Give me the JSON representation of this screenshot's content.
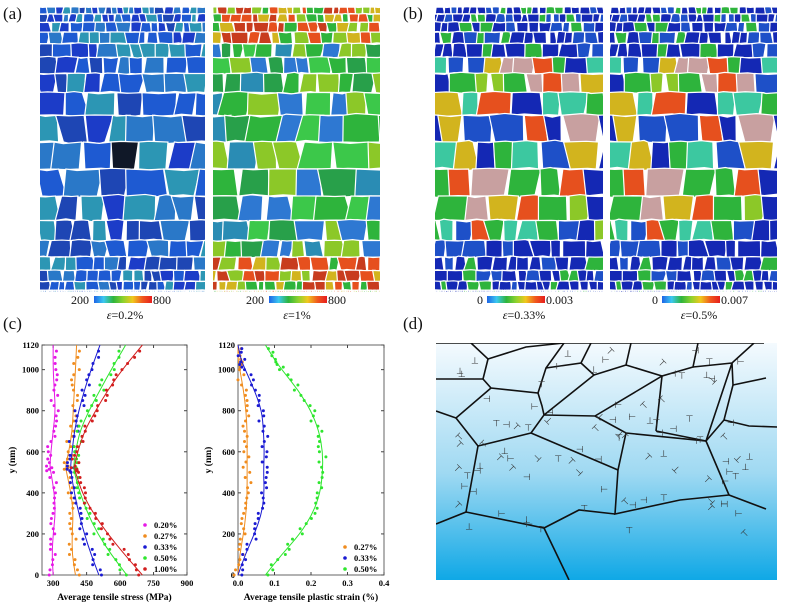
{
  "figure": {
    "panels": {
      "a": {
        "label": "(a)",
        "maps": [
          {
            "caption_symbol": "ε",
            "caption_value": "=0.2%",
            "colorbar_min": "200",
            "colorbar_max": "800",
            "palette": "blue"
          },
          {
            "caption_symbol": "ε",
            "caption_value": "=1%",
            "colorbar_min": "200",
            "colorbar_max": "800",
            "palette": "green"
          }
        ]
      },
      "b": {
        "label": "(b)",
        "maps": [
          {
            "caption_symbol": "ε",
            "caption_value": "=0.33%",
            "colorbar_min": "0",
            "colorbar_max": "0.003",
            "palette": "band"
          },
          {
            "caption_symbol": "ε",
            "caption_value": "=0.5%",
            "colorbar_min": "0",
            "colorbar_max": "0.007",
            "palette": "band"
          }
        ]
      },
      "c": {
        "label": "(c)"
      },
      "d": {
        "label": "(d)",
        "description": "Schematic of grains with dislocations (⊥ symbols) near a surface"
      }
    },
    "colors": {
      "magenta": "#e619e6",
      "orange": "#f08c1e",
      "blue": "#1a1ad2",
      "green": "#2ee62e",
      "red": "#d21e1e"
    }
  },
  "chart_data": [
    {
      "type": "scatter",
      "title": "",
      "xlabel": "Average tensile stress (MPa)",
      "ylabel": "y (nm)",
      "xlim": [
        250,
        900
      ],
      "ylim": [
        0,
        1120
      ],
      "xticks": [
        300,
        450,
        600,
        750,
        900
      ],
      "yticks": [
        0,
        200,
        400,
        600,
        800,
        1000,
        1120
      ],
      "legend_position": "bottom-right",
      "y": [
        0,
        100,
        200,
        300,
        400,
        500,
        530,
        600,
        700,
        800,
        900,
        1000,
        1120
      ],
      "series": [
        {
          "name": "0.20%",
          "color": "#e619e6",
          "x": [
            300,
            295,
            300,
            310,
            305,
            290,
            285,
            290,
            300,
            310,
            305,
            300,
            300
          ]
        },
        {
          "name": "0.27%",
          "color": "#f08c1e",
          "x": [
            400,
            385,
            385,
            390,
            380,
            360,
            355,
            370,
            385,
            390,
            395,
            400,
            405
          ]
        },
        {
          "name": "0.33%",
          "color": "#1a1ad2",
          "x": [
            505,
            470,
            440,
            415,
            395,
            380,
            378,
            385,
            395,
            415,
            440,
            470,
            510
          ]
        },
        {
          "name": "0.50%",
          "color": "#2ee62e",
          "x": [
            630,
            560,
            500,
            455,
            420,
            395,
            392,
            400,
            420,
            460,
            510,
            560,
            625
          ]
        },
        {
          "name": "1.00%",
          "color": "#d21e1e",
          "x": [
            700,
            620,
            545,
            480,
            430,
            400,
            395,
            410,
            440,
            490,
            545,
            610,
            700
          ]
        }
      ]
    },
    {
      "type": "scatter",
      "title": "",
      "xlabel": "Average tensile plastic strain (%)",
      "ylabel": "y (nm)",
      "xlim": [
        0.0,
        0.4
      ],
      "ylim": [
        0,
        1120
      ],
      "xticks": [
        0.0,
        0.1,
        0.2,
        0.3,
        0.4
      ],
      "yticks": [
        0,
        200,
        400,
        600,
        800,
        1000,
        1120
      ],
      "legend_position": "bottom-right",
      "y": [
        0,
        100,
        200,
        300,
        400,
        500,
        600,
        700,
        800,
        900,
        1000,
        1050,
        1120
      ],
      "series": [
        {
          "name": "0.27%",
          "color": "#f08c1e",
          "x": [
            0.0,
            0.005,
            0.015,
            0.022,
            0.025,
            0.025,
            0.025,
            0.025,
            0.022,
            0.015,
            0.005,
            0.0,
            0.0
          ]
        },
        {
          "name": "0.33%",
          "color": "#1a1ad2",
          "x": [
            0.0,
            0.02,
            0.045,
            0.065,
            0.072,
            0.07,
            0.072,
            0.07,
            0.065,
            0.045,
            0.02,
            0.008,
            0.0
          ]
        },
        {
          "name": "0.50%",
          "color": "#2ee62e",
          "x": [
            0.075,
            0.12,
            0.17,
            0.205,
            0.225,
            0.232,
            0.232,
            0.222,
            0.2,
            0.165,
            0.12,
            0.1,
            0.075
          ]
        }
      ]
    }
  ]
}
